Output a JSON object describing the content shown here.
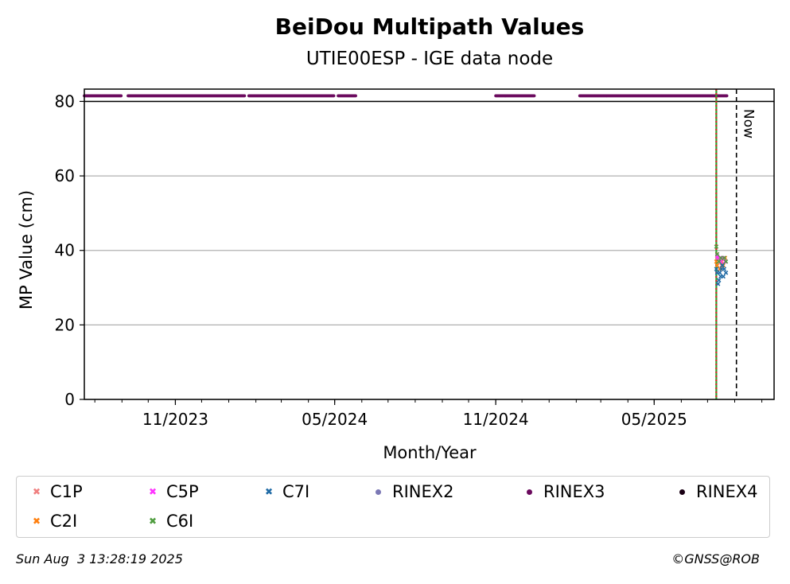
{
  "chart_data": {
    "type": "scatter",
    "title": "BeiDou Multipath Values",
    "subtitle": "UTIE00ESP - IGE data node",
    "xlabel": "Month/Year",
    "ylabel": "MP Value (cm)",
    "x_range": [
      "2023-07-20",
      "2025-09-15"
    ],
    "ylim": [
      0,
      80
    ],
    "yticks": [
      0,
      20,
      40,
      60,
      80
    ],
    "xticks": [
      {
        "date": "2023-11-01",
        "label": "11/2023"
      },
      {
        "date": "2024-05-01",
        "label": "05/2024"
      },
      {
        "date": "2024-11-01",
        "label": "11/2024"
      },
      {
        "date": "2025-05-01",
        "label": "05/2025"
      }
    ],
    "minor_ticks_monthly": true,
    "grid": "horizontal",
    "now_label": "Now",
    "now_date": "2025-08-03",
    "vertical_markers": [
      {
        "date": "2025-07-11",
        "colors": [
          "#2ca02c",
          "#d62728"
        ],
        "style": "dotted-pair"
      }
    ],
    "rinex3_availability": {
      "label": "RINEX3",
      "y": 81.5,
      "color": "#6b0a5e",
      "periods": [
        [
          "2023-07-20",
          "2023-08-31"
        ],
        [
          "2023-09-08",
          "2024-01-19"
        ],
        [
          "2024-01-24",
          "2024-04-30"
        ],
        [
          "2024-05-05",
          "2024-05-25"
        ],
        [
          "2024-11-01",
          "2024-12-15"
        ],
        [
          "2025-02-05",
          "2025-07-23"
        ]
      ]
    },
    "series": [
      {
        "name": "C1P",
        "marker": "x",
        "color": "#f08080",
        "points": [
          [
            "2025-07-12",
            38
          ],
          [
            "2025-07-14",
            37
          ],
          [
            "2025-07-17",
            36
          ]
        ]
      },
      {
        "name": "C2I",
        "marker": "x",
        "color": "#ff7f0e",
        "points": [
          [
            "2025-07-11",
            37
          ],
          [
            "2025-07-12",
            36
          ],
          [
            "2025-07-13",
            38
          ],
          [
            "2025-07-15",
            35
          ],
          [
            "2025-07-17",
            37
          ],
          [
            "2025-07-19",
            36
          ],
          [
            "2025-07-21",
            38
          ]
        ]
      },
      {
        "name": "C5P",
        "marker": "x",
        "color": "#ff33ff",
        "points": [
          [
            "2025-07-12",
            38.5
          ],
          [
            "2025-07-13",
            38
          ],
          [
            "2025-07-16",
            37
          ],
          [
            "2025-07-18",
            38
          ],
          [
            "2025-07-21",
            37
          ]
        ]
      },
      {
        "name": "C6I",
        "marker": "x",
        "color": "#4f9d3f",
        "points": [
          [
            "2025-07-11",
            41
          ],
          [
            "2025-07-12",
            39
          ],
          [
            "2025-07-14",
            37
          ],
          [
            "2025-07-16",
            38
          ],
          [
            "2025-07-18",
            36
          ],
          [
            "2025-07-20",
            38
          ],
          [
            "2025-07-22",
            37
          ]
        ]
      },
      {
        "name": "C7I",
        "marker": "x",
        "color": "#1f6aa5",
        "points": [
          [
            "2025-07-11",
            35
          ],
          [
            "2025-07-12",
            34
          ],
          [
            "2025-07-13",
            31
          ],
          [
            "2025-07-14",
            32
          ],
          [
            "2025-07-15",
            34
          ],
          [
            "2025-07-16",
            33
          ],
          [
            "2025-07-17",
            35
          ],
          [
            "2025-07-18",
            36
          ],
          [
            "2025-07-19",
            33
          ],
          [
            "2025-07-20",
            35
          ],
          [
            "2025-07-22",
            34
          ]
        ]
      }
    ],
    "legend": [
      {
        "label": "C1P",
        "marker": "x",
        "color": "#f08080"
      },
      {
        "label": "C5P",
        "marker": "x",
        "color": "#ff33ff"
      },
      {
        "label": "C7I",
        "marker": "x",
        "color": "#1f6aa5"
      },
      {
        "label": "RINEX2",
        "marker": "dot",
        "color": "#7b78b5"
      },
      {
        "label": "RINEX3",
        "marker": "dot",
        "color": "#6b0a5e"
      },
      {
        "label": "RINEX4",
        "marker": "dot",
        "color": "#1a0014"
      },
      {
        "label": "C2I",
        "marker": "x",
        "color": "#ff7f0e"
      },
      {
        "label": "C6I",
        "marker": "x",
        "color": "#4f9d3f"
      }
    ],
    "legend_placement": "bottom"
  },
  "footer": {
    "timestamp": "Sun Aug  3 13:28:19 2025",
    "credit": "©GNSS@ROB"
  }
}
